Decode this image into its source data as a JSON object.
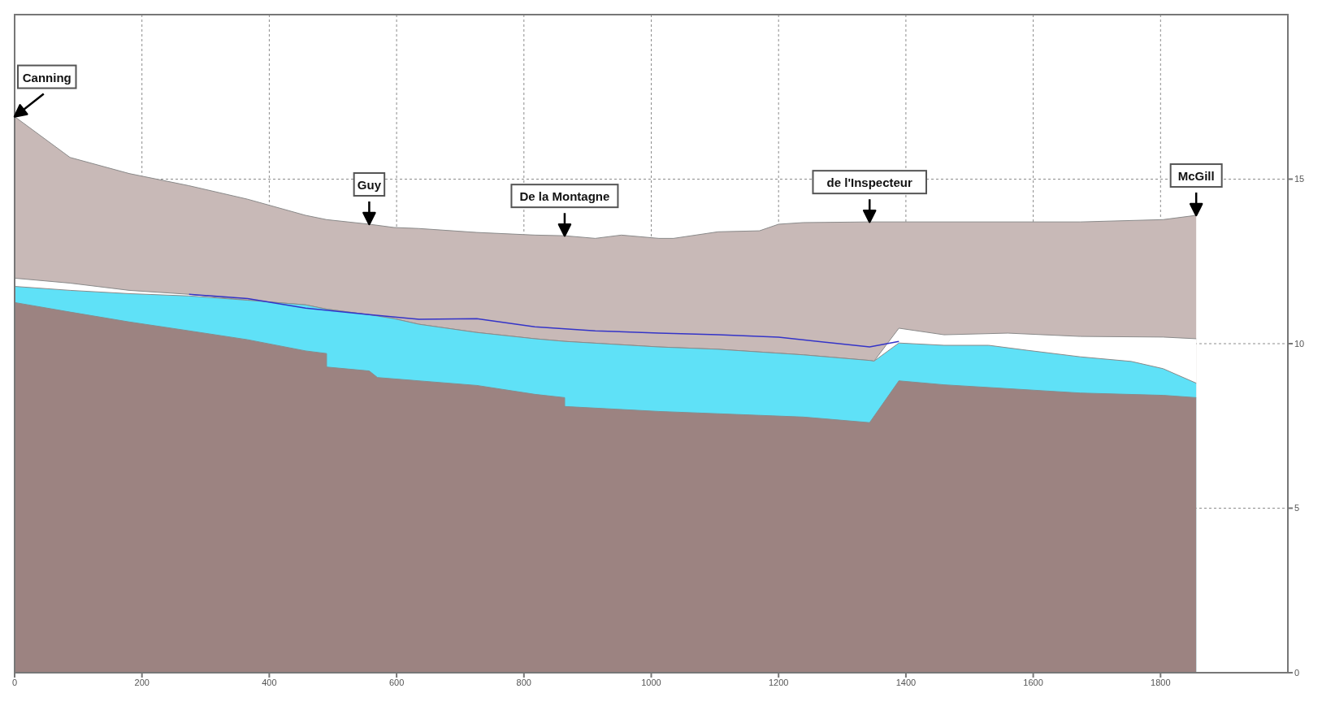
{
  "chart_data": {
    "type": "area",
    "series": [
      {
        "color": "#c8b9b7",
        "x": [
          0,
          87,
          180,
          274,
          366,
          457,
          490,
          557,
          596,
          635,
          726,
          817,
          864,
          912,
          953,
          1012,
          1035,
          1105,
          1170,
          1200,
          1239,
          1343,
          1674,
          1804,
          1856
        ],
        "values": [
          16.9,
          15.66,
          15.17,
          14.8,
          14.39,
          13.9,
          13.77,
          13.63,
          13.53,
          13.5,
          13.38,
          13.3,
          13.28,
          13.2,
          13.3,
          13.2,
          13.2,
          13.4,
          13.43,
          13.63,
          13.68,
          13.7,
          13.7,
          13.77,
          13.9
        ]
      },
      {
        "color": "#ffffff",
        "x": [
          0,
          87,
          180,
          274,
          366,
          457,
          490,
          557,
          596,
          635,
          726,
          817,
          864,
          1012,
          1105,
          1239,
          1343,
          1350,
          1389,
          1460,
          1560,
          1674,
          1804,
          1856
        ],
        "values": [
          11.99,
          11.84,
          11.62,
          11.5,
          11.32,
          11.18,
          11.05,
          10.88,
          10.76,
          10.59,
          10.34,
          10.15,
          10.07,
          9.9,
          9.83,
          9.66,
          9.49,
          9.47,
          10.47,
          10.27,
          10.32,
          10.22,
          10.2,
          10.15
        ]
      },
      {
        "color": "#5fe1f7",
        "x": [
          0,
          87,
          180,
          274,
          366,
          457,
          490,
          557,
          596,
          635,
          726,
          817,
          864,
          1012,
          1105,
          1239,
          1343,
          1350,
          1389,
          1460,
          1530,
          1590,
          1674,
          1754,
          1804,
          1856
        ],
        "values": [
          11.74,
          11.62,
          11.52,
          11.45,
          11.32,
          11.18,
          11.05,
          10.88,
          10.76,
          10.59,
          10.34,
          10.15,
          10.07,
          9.9,
          9.83,
          9.66,
          9.49,
          9.47,
          10.02,
          9.95,
          9.95,
          9.8,
          9.6,
          9.46,
          9.24,
          8.8
        ]
      },
      {
        "type": "line",
        "color": "#3434c8",
        "x": [
          274,
          366,
          457,
          557,
          635,
          726,
          817,
          912,
          1012,
          1105,
          1200,
          1343,
          1389
        ],
        "values": [
          11.5,
          11.37,
          11.08,
          10.88,
          10.74,
          10.76,
          10.51,
          10.39,
          10.32,
          10.27,
          10.2,
          9.9,
          10.07
        ]
      },
      {
        "color": "#9c8381",
        "x": [
          0,
          87,
          180,
          274,
          366,
          457,
          490,
          490,
          557,
          570,
          726,
          817,
          864,
          864,
          1012,
          1239,
          1343,
          1389,
          1460,
          1674,
          1804,
          1856
        ],
        "values": [
          11.25,
          10.96,
          10.66,
          10.39,
          10.12,
          9.78,
          9.7,
          9.29,
          9.17,
          8.97,
          8.73,
          8.46,
          8.36,
          8.09,
          7.94,
          7.77,
          7.6,
          8.87,
          8.75,
          8.5,
          8.43,
          8.36
        ]
      }
    ],
    "xlim": [
      0,
      2000
    ],
    "xticks": [
      0,
      200,
      400,
      600,
      800,
      1000,
      1200,
      1400,
      1600,
      1800
    ],
    "ylim": [
      0,
      20
    ],
    "yticks": [
      0,
      5,
      10,
      15
    ],
    "grid": true,
    "annotations": [
      {
        "text": "Canning",
        "x": 0,
        "y": 16.9
      },
      {
        "text": "Guy",
        "x": 557,
        "y": 13.63
      },
      {
        "text": "De la Montagne",
        "x": 864,
        "y": 13.28
      },
      {
        "text": "de l'Inspecteur",
        "x": 1343,
        "y": 13.7
      },
      {
        "text": "McGill",
        "x": 1856,
        "y": 13.9
      }
    ]
  }
}
